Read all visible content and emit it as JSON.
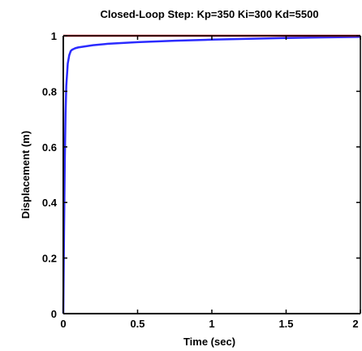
{
  "chart_data": {
    "type": "line",
    "title": "Closed-Loop Step: Kp=350 Ki=300 Kd=5500",
    "xlabel": "Time (sec)",
    "ylabel": "Displacement (m)",
    "xlim": [
      0,
      2
    ],
    "ylim": [
      0,
      1
    ],
    "x_ticks": [
      0,
      0.5,
      1,
      1.5,
      2
    ],
    "x_tick_labels": [
      "0",
      "0.5",
      "1",
      "1.5",
      "2"
    ],
    "y_ticks": [
      0,
      0.2,
      0.4,
      0.6,
      0.8,
      1
    ],
    "y_tick_labels": [
      "0",
      "0.2",
      "0.4",
      "0.6",
      "0.8",
      "1"
    ],
    "grid": false,
    "series": [
      {
        "color": "#2b2bff",
        "x": [
          0,
          0.005,
          0.01,
          0.015,
          0.02,
          0.03,
          0.04,
          0.05,
          0.06,
          0.08,
          0.1,
          0.15,
          0.2,
          0.3,
          0.5,
          0.75,
          1.0,
          1.25,
          1.5,
          1.75,
          2.0
        ],
        "y": [
          0,
          0.3,
          0.55,
          0.72,
          0.82,
          0.9,
          0.93,
          0.945,
          0.95,
          0.955,
          0.958,
          0.962,
          0.966,
          0.971,
          0.977,
          0.982,
          0.986,
          0.989,
          0.992,
          0.994,
          0.996
        ]
      },
      {
        "color": "#e0202a",
        "x": [
          0,
          2
        ],
        "y": [
          1,
          1
        ]
      }
    ]
  }
}
